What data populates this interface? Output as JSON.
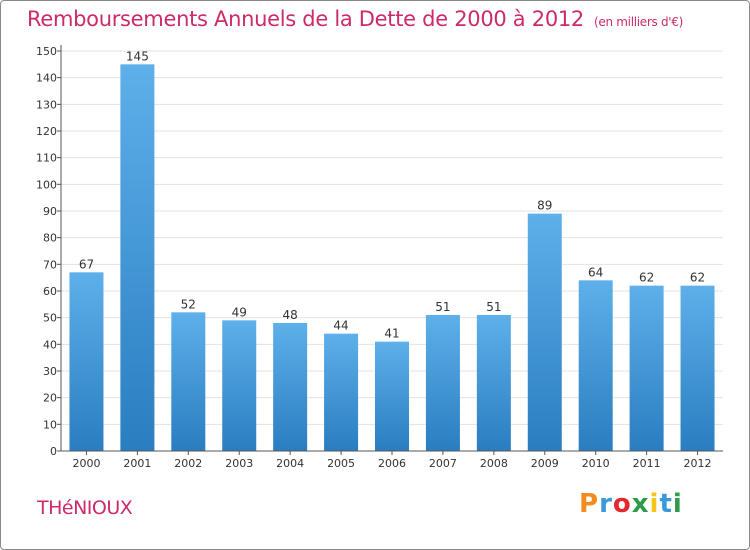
{
  "header": {
    "title": "Remboursements Annuels de la Dette de 2000 à 2012",
    "unit": "(en milliers d'€)"
  },
  "footer": {
    "commune": "THéNIOUX",
    "brand": {
      "letters": [
        "P",
        "r",
        "o",
        "x",
        "i",
        "t",
        "i"
      ],
      "colors": [
        "#f28c1e",
        "#3a9ad9",
        "#e6282e",
        "#2e9b48",
        "#f5c518",
        "#3a9ad9",
        "#2e9b48"
      ]
    }
  },
  "chart_data": {
    "type": "bar",
    "title": "Remboursements Annuels de la Dette de 2000 à 2012",
    "categories": [
      "2000",
      "2001",
      "2002",
      "2003",
      "2004",
      "2005",
      "2006",
      "2007",
      "2008",
      "2009",
      "2010",
      "2011",
      "2012"
    ],
    "values": [
      67,
      145,
      52,
      49,
      48,
      44,
      41,
      51,
      51,
      89,
      64,
      62,
      62
    ],
    "ylim": [
      0,
      150
    ],
    "yticks": [
      0,
      10,
      20,
      30,
      40,
      50,
      60,
      70,
      80,
      90,
      100,
      110,
      120,
      130,
      140,
      150
    ],
    "grid": true,
    "bar_color_top": "#5eb0ea",
    "bar_color_bottom": "#2a7dc0",
    "grid_color": "#e3e3e3",
    "axis_color": "#555555"
  }
}
